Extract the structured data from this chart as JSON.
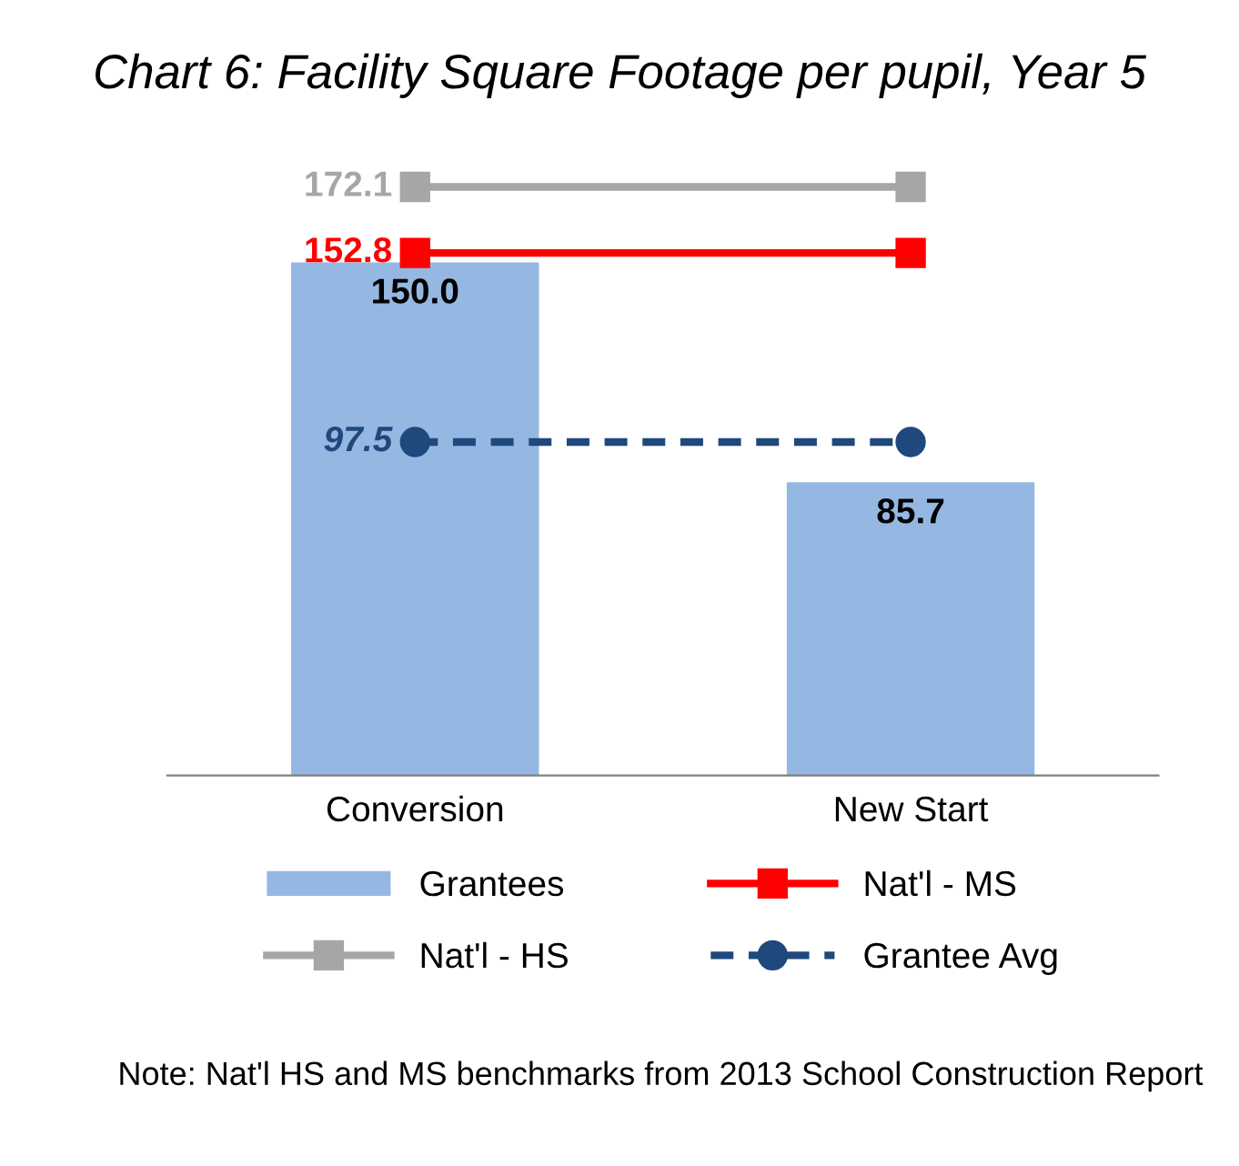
{
  "chart_data": {
    "type": "bar",
    "title": "Chart 6: Facility Square Footage per pupil, Year 5",
    "categories": [
      "Conversion",
      "New Start"
    ],
    "series": [
      {
        "name": "Grantees",
        "color": "#95b8e3",
        "values": [
          150.0,
          85.7
        ],
        "value_labels": [
          "150.0",
          "85.7"
        ]
      },
      {
        "name": "Nat'l - MS",
        "type": "line",
        "color": "#ff0000",
        "values": [
          152.8,
          152.8
        ],
        "value_labels": [
          "152.8",
          null
        ],
        "marker": "square",
        "line_style": "solid"
      },
      {
        "name": "Nat'l - HS",
        "type": "line",
        "color": "#a6a6a6",
        "values": [
          172.1,
          172.1
        ],
        "value_labels": [
          "172.1",
          null
        ],
        "marker": "square",
        "line_style": "solid"
      },
      {
        "name": "Grantee Avg",
        "type": "line",
        "color": "#1f497d",
        "values": [
          97.5,
          97.5
        ],
        "value_labels": [
          "97.5",
          null
        ],
        "marker": "circle",
        "line_style": "dashed"
      }
    ],
    "legend": "bottom",
    "grid": false,
    "annotations": [
      "Note: Nat'l HS and MS benchmarks from 2013 School Construction Report"
    ]
  }
}
